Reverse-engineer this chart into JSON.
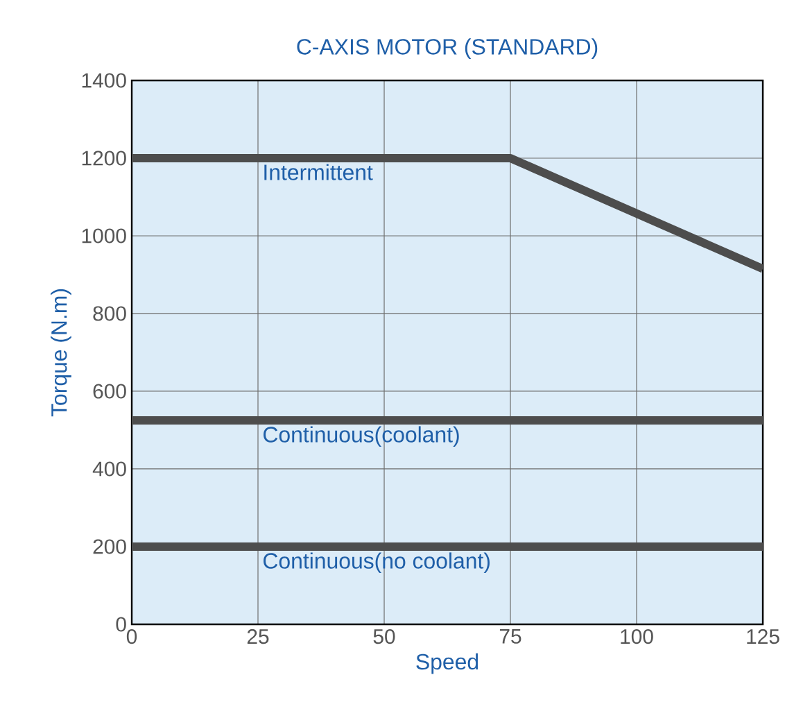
{
  "chart_data": {
    "type": "line",
    "title": "C-AXIS MOTOR (STANDARD)",
    "xlabel": "Speed",
    "ylabel": "Torque (N.m)",
    "series": [
      {
        "name": "Intermittent",
        "color": "#4d4d4d",
        "x": [
          0,
          75,
          125
        ],
        "values": [
          1200,
          1200,
          915
        ]
      },
      {
        "name": "Continuous(coolant)",
        "color": "#4d4d4d",
        "x": [
          0,
          125
        ],
        "values": [
          525,
          525
        ]
      },
      {
        "name": "Continuous(no coolant)",
        "color": "#4d4d4d",
        "x": [
          0,
          125
        ],
        "values": [
          200,
          200
        ]
      }
    ],
    "xlim": [
      0,
      125
    ],
    "xticks": [
      0,
      25,
      50,
      75,
      100,
      125
    ],
    "ylim": [
      0,
      1400
    ],
    "yticks": [
      0,
      200,
      400,
      600,
      800,
      1000,
      1200,
      1400
    ],
    "grid": true,
    "legend": false,
    "marker": "none",
    "line_style": "solid"
  }
}
